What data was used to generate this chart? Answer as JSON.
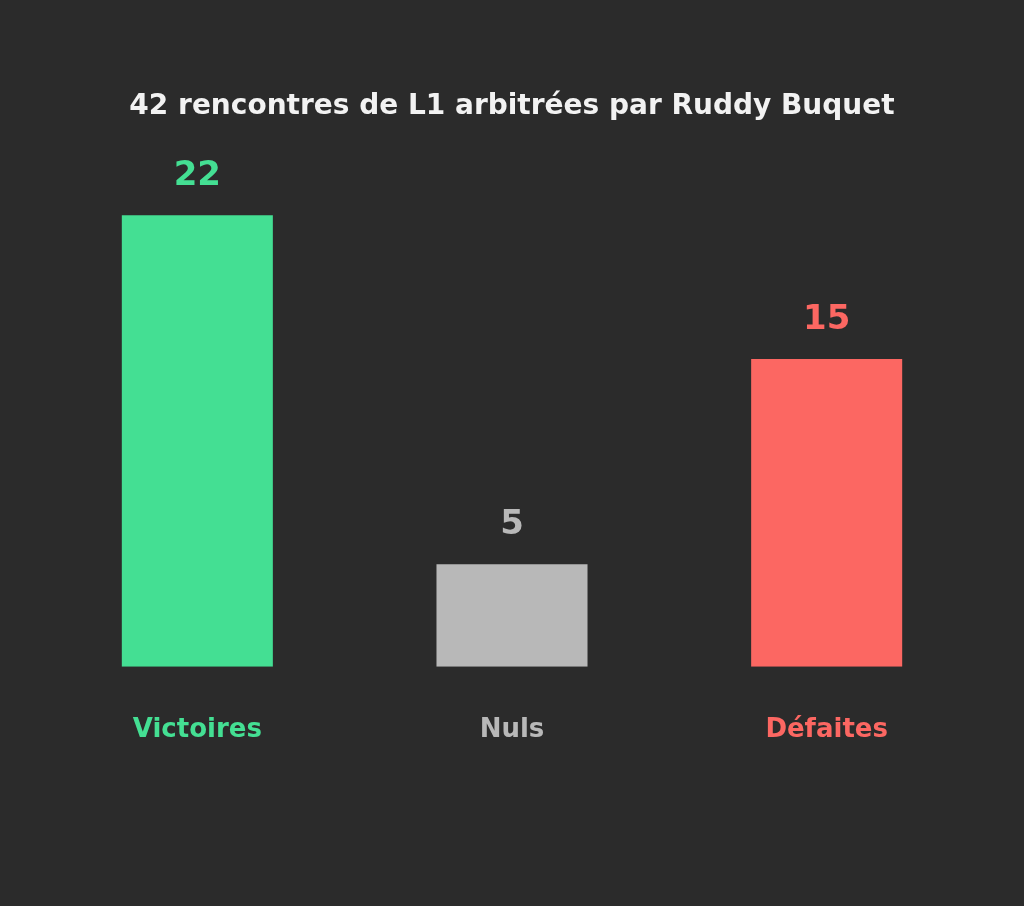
{
  "chart_data": {
    "type": "bar",
    "title": "42 rencontres de L1 arbitrées par Ruddy Buquet",
    "categories": [
      "Victoires",
      "Nuls",
      "Défaites"
    ],
    "values": [
      22,
      5,
      15
    ],
    "colors": [
      "#44df93",
      "#b8b8b8",
      "#fc6762"
    ],
    "data_labels": true
  }
}
